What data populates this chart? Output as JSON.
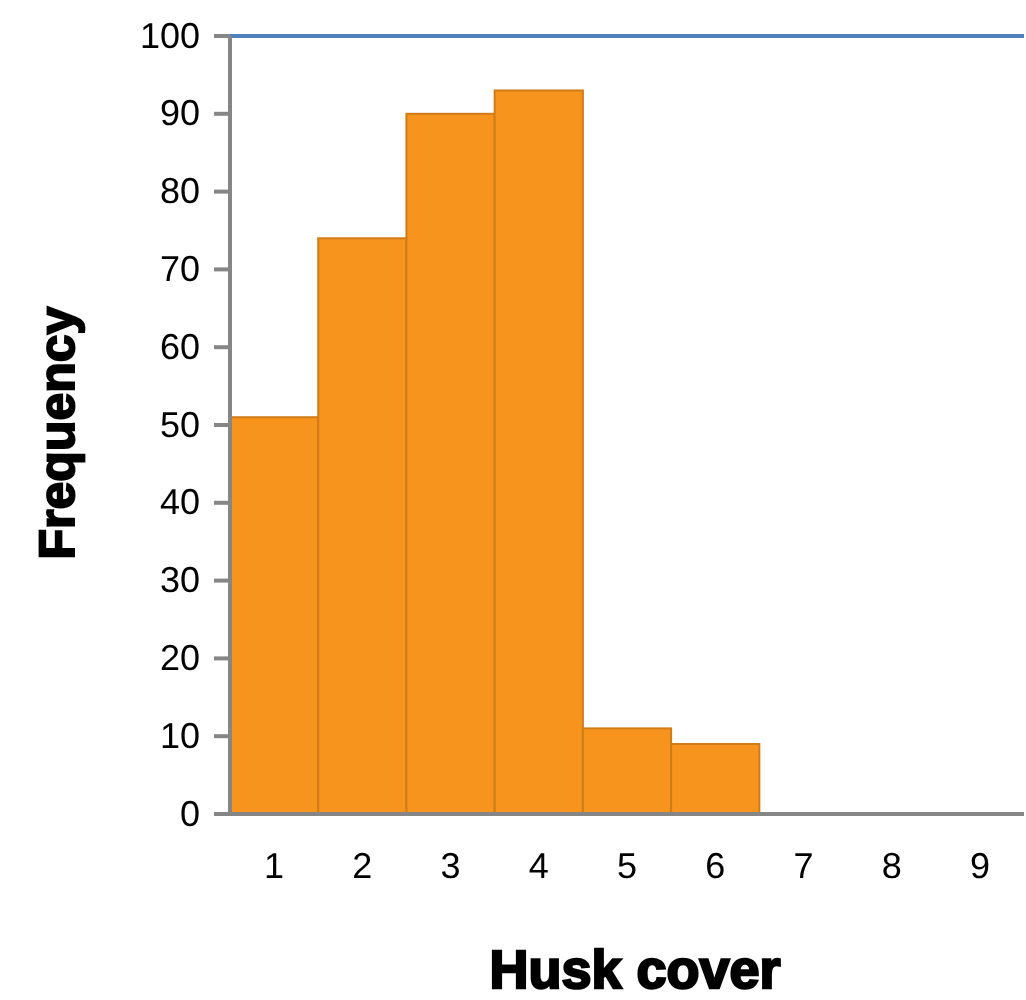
{
  "chart_data": {
    "type": "bar",
    "xlabel": "Husk cover",
    "ylabel": "Frequency",
    "categories": [
      "1",
      "2",
      "3",
      "4",
      "5",
      "6",
      "7",
      "8",
      "9"
    ],
    "values": [
      51,
      74,
      90,
      93,
      11,
      9,
      0,
      0,
      0
    ],
    "color": "#f7941e",
    "ylim": [
      0,
      100
    ],
    "yticks": [
      0,
      10,
      20,
      30,
      40,
      50,
      60,
      70,
      80,
      90,
      100
    ],
    "grid": false
  }
}
